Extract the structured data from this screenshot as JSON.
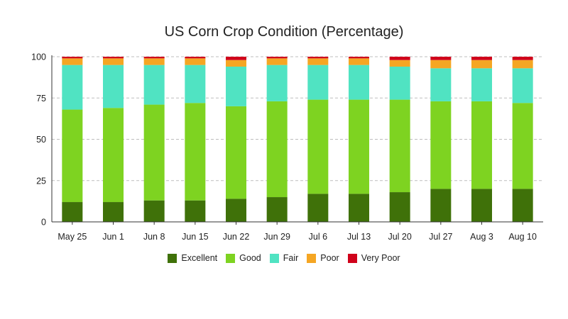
{
  "chart_data": {
    "type": "bar",
    "stacked": true,
    "title": "US Corn Crop Condition (Percentage)",
    "xlabel": "",
    "ylabel": "",
    "ylim": [
      0,
      100
    ],
    "yticks": [
      0,
      25,
      50,
      75,
      100
    ],
    "grid": true,
    "legend_position": "bottom",
    "categories": [
      "May 25",
      "Jun 1",
      "Jun 8",
      "Jun 15",
      "Jun 22",
      "Jun 29",
      "Jul 6",
      "Jul 13",
      "Jul 20",
      "Jul 27",
      "Aug 3",
      "Aug 10"
    ],
    "series": [
      {
        "name": "Excellent",
        "color": "#3f7109",
        "values": [
          12,
          12,
          13,
          13,
          14,
          15,
          17,
          17,
          18,
          20,
          20,
          20
        ]
      },
      {
        "name": "Good",
        "color": "#7ed321",
        "values": [
          56,
          57,
          58,
          59,
          56,
          58,
          57,
          57,
          56,
          53,
          53,
          52
        ]
      },
      {
        "name": "Fair",
        "color": "#50e3c2",
        "values": [
          27,
          26,
          24,
          23,
          24,
          22,
          21,
          21,
          20,
          20,
          20,
          21
        ]
      },
      {
        "name": "Poor",
        "color": "#f5a623",
        "values": [
          4,
          4,
          4,
          4,
          4,
          4,
          4,
          4,
          4,
          5,
          5,
          5
        ]
      },
      {
        "name": "Very Poor",
        "color": "#d0021b",
        "values": [
          1,
          1,
          1,
          1,
          2,
          1,
          1,
          1,
          2,
          2,
          2,
          2
        ]
      }
    ]
  }
}
